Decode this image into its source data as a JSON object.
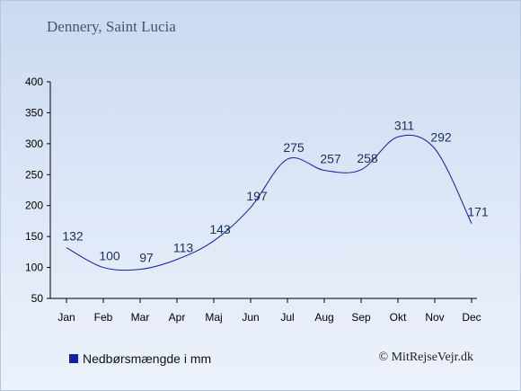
{
  "title": "Dennery, Saint Lucia",
  "legend": {
    "label": "Nedbørsmængde i mm",
    "color": "#1020a8"
  },
  "credit": "© MitRejseVejr.dk",
  "chart_data": {
    "type": "line",
    "title": "Dennery, Saint Lucia",
    "xlabel": "",
    "ylabel": "",
    "categories": [
      "Jan",
      "Feb",
      "Mar",
      "Apr",
      "Maj",
      "Jun",
      "Jul",
      "Aug",
      "Sep",
      "Okt",
      "Nov",
      "Dec"
    ],
    "series": [
      {
        "name": "Nedbørsmængde i mm",
        "values": [
          132,
          100,
          97,
          113,
          143,
          197,
          275,
          257,
          258,
          311,
          292,
          171
        ],
        "color": "#1020a8"
      }
    ],
    "ylim": [
      50,
      400
    ],
    "yticks": [
      50,
      100,
      150,
      200,
      250,
      300,
      350,
      400
    ],
    "grid": false,
    "legend_position": "bottom-left"
  }
}
